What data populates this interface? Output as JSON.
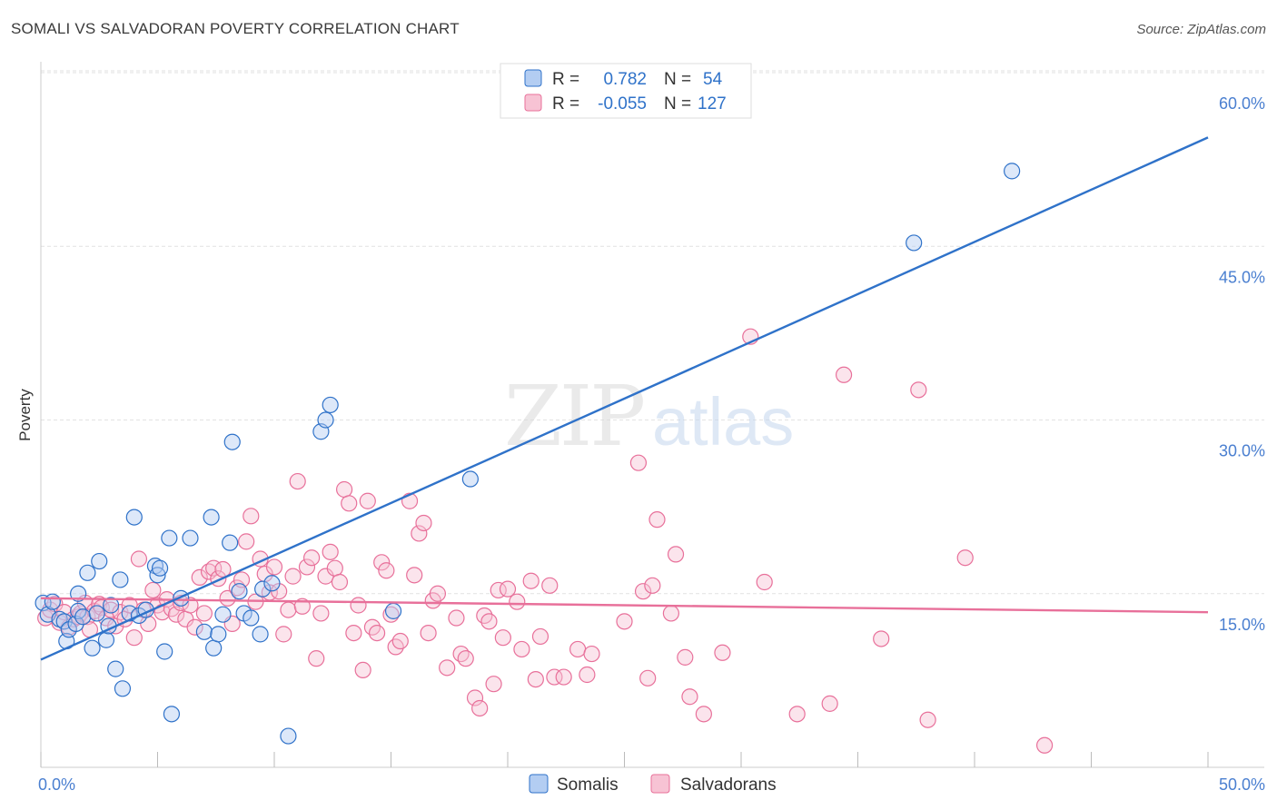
{
  "title": "SOMALI VS SALVADORAN POVERTY CORRELATION CHART",
  "source": "Source: ZipAtlas.com",
  "watermark": {
    "zip": "ZIP",
    "atlas": "atlas"
  },
  "colors": {
    "blue": "#2f72c9",
    "blue_fill": "#b3cdf2",
    "pink": "#e8709a",
    "pink_fill": "#f7c3d4",
    "axis_label": "#4a7fd0",
    "grid": "#e2e2e2"
  },
  "stats_legend": {
    "rows": [
      {
        "r_label": "R =",
        "r_value": "0.782",
        "n_label": "N =",
        "n_value": "54"
      },
      {
        "r_label": "R =",
        "r_value": "-0.055",
        "n_label": "N =",
        "n_value": "127"
      }
    ]
  },
  "chart_data": {
    "type": "scatter",
    "title": "SOMALI VS SALVADORAN POVERTY CORRELATION CHART",
    "xlabel": "",
    "ylabel": "Poverty",
    "xlim": [
      0,
      50
    ],
    "ylim": [
      0,
      60
    ],
    "x_tick_labels": [
      "0.0%",
      "50.0%"
    ],
    "y_ticks": [
      15,
      30,
      45,
      60
    ],
    "y_tick_labels": [
      "15.0%",
      "30.0%",
      "45.0%",
      "60.0%"
    ],
    "grid": true,
    "legend_position": "bottom-center",
    "series": [
      {
        "name": "Somalis",
        "color": "#2f72c9",
        "r": 0.782,
        "n": 54,
        "trend": {
          "x": [
            0,
            50
          ],
          "y": [
            9.3,
            54.4
          ]
        },
        "points": [
          [
            0.1,
            14.2
          ],
          [
            0.3,
            13.2
          ],
          [
            0.5,
            14.3
          ],
          [
            0.8,
            12.8
          ],
          [
            1.0,
            12.6
          ],
          [
            1.1,
            10.9
          ],
          [
            1.2,
            11.9
          ],
          [
            1.5,
            12.4
          ],
          [
            1.6,
            13.5
          ],
          [
            1.6,
            15.0
          ],
          [
            1.8,
            13.0
          ],
          [
            2.0,
            16.8
          ],
          [
            2.2,
            10.3
          ],
          [
            2.4,
            13.3
          ],
          [
            2.5,
            17.8
          ],
          [
            2.8,
            11.0
          ],
          [
            2.9,
            12.2
          ],
          [
            3.0,
            14.0
          ],
          [
            3.2,
            8.5
          ],
          [
            3.4,
            16.2
          ],
          [
            3.5,
            6.8
          ],
          [
            3.8,
            13.3
          ],
          [
            4.0,
            21.6
          ],
          [
            4.2,
            13.1
          ],
          [
            4.5,
            13.6
          ],
          [
            4.9,
            17.4
          ],
          [
            5.0,
            16.6
          ],
          [
            5.1,
            17.2
          ],
          [
            5.3,
            10.0
          ],
          [
            5.5,
            19.8
          ],
          [
            5.6,
            4.6
          ],
          [
            6.0,
            14.6
          ],
          [
            6.4,
            19.8
          ],
          [
            7.0,
            11.7
          ],
          [
            7.3,
            21.6
          ],
          [
            7.4,
            10.3
          ],
          [
            7.6,
            11.5
          ],
          [
            7.8,
            13.2
          ],
          [
            8.1,
            19.4
          ],
          [
            8.2,
            28.1
          ],
          [
            8.5,
            15.2
          ],
          [
            8.7,
            13.3
          ],
          [
            9.0,
            12.9
          ],
          [
            9.4,
            11.5
          ],
          [
            9.5,
            15.4
          ],
          [
            9.9,
            15.9
          ],
          [
            10.6,
            2.7
          ],
          [
            12.0,
            29.0
          ],
          [
            12.2,
            30.0
          ],
          [
            12.4,
            31.3
          ],
          [
            15.1,
            13.5
          ],
          [
            18.4,
            24.9
          ],
          [
            37.4,
            45.3
          ],
          [
            41.6,
            51.5
          ]
        ]
      },
      {
        "name": "Salvadorans",
        "color": "#e8709a",
        "r": -0.055,
        "n": 127,
        "trend": {
          "x": [
            0,
            50
          ],
          "y": [
            14.6,
            13.4
          ]
        },
        "points": [
          [
            0.2,
            12.9
          ],
          [
            0.4,
            13.6
          ],
          [
            0.6,
            14.1
          ],
          [
            0.8,
            12.5
          ],
          [
            1.0,
            13.4
          ],
          [
            1.2,
            12.1
          ],
          [
            1.4,
            12.8
          ],
          [
            1.6,
            13.0
          ],
          [
            1.7,
            13.3
          ],
          [
            1.9,
            14.2
          ],
          [
            2.0,
            13.0
          ],
          [
            2.1,
            11.9
          ],
          [
            2.3,
            13.5
          ],
          [
            2.5,
            14.1
          ],
          [
            2.6,
            13.8
          ],
          [
            2.8,
            12.9
          ],
          [
            3.0,
            13.6
          ],
          [
            3.2,
            12.2
          ],
          [
            3.4,
            13.4
          ],
          [
            3.6,
            12.8
          ],
          [
            3.8,
            14.0
          ],
          [
            4.0,
            11.2
          ],
          [
            4.2,
            18.0
          ],
          [
            4.4,
            13.6
          ],
          [
            4.6,
            12.4
          ],
          [
            4.8,
            15.3
          ],
          [
            5.0,
            14.0
          ],
          [
            5.2,
            13.4
          ],
          [
            5.4,
            14.5
          ],
          [
            5.6,
            13.7
          ],
          [
            5.8,
            13.2
          ],
          [
            6.0,
            14.2
          ],
          [
            6.2,
            12.8
          ],
          [
            6.4,
            14.0
          ],
          [
            6.6,
            12.1
          ],
          [
            6.8,
            16.4
          ],
          [
            7.0,
            13.3
          ],
          [
            7.2,
            16.9
          ],
          [
            7.4,
            17.2
          ],
          [
            7.6,
            16.3
          ],
          [
            7.8,
            17.1
          ],
          [
            8.0,
            14.6
          ],
          [
            8.2,
            12.4
          ],
          [
            8.4,
            15.5
          ],
          [
            8.6,
            16.2
          ],
          [
            8.8,
            19.5
          ],
          [
            9.0,
            21.7
          ],
          [
            9.2,
            14.3
          ],
          [
            9.4,
            18.0
          ],
          [
            9.6,
            16.7
          ],
          [
            9.8,
            15.1
          ],
          [
            10.0,
            17.3
          ],
          [
            10.2,
            15.2
          ],
          [
            10.4,
            11.5
          ],
          [
            10.6,
            13.6
          ],
          [
            10.8,
            16.5
          ],
          [
            11.0,
            24.7
          ],
          [
            11.2,
            13.9
          ],
          [
            11.4,
            17.3
          ],
          [
            11.6,
            18.1
          ],
          [
            11.8,
            9.4
          ],
          [
            12.0,
            13.3
          ],
          [
            12.2,
            16.5
          ],
          [
            12.4,
            18.6
          ],
          [
            12.6,
            17.2
          ],
          [
            12.8,
            16.0
          ],
          [
            13.0,
            24.0
          ],
          [
            13.2,
            22.8
          ],
          [
            13.4,
            11.6
          ],
          [
            13.6,
            14.0
          ],
          [
            13.8,
            8.4
          ],
          [
            14.0,
            23.0
          ],
          [
            14.2,
            12.1
          ],
          [
            14.4,
            11.6
          ],
          [
            14.6,
            17.7
          ],
          [
            14.8,
            17.0
          ],
          [
            15.0,
            13.2
          ],
          [
            15.2,
            10.4
          ],
          [
            15.4,
            10.9
          ],
          [
            15.8,
            23.0
          ],
          [
            16.0,
            16.6
          ],
          [
            16.2,
            20.2
          ],
          [
            16.4,
            21.1
          ],
          [
            16.6,
            11.6
          ],
          [
            16.8,
            14.4
          ],
          [
            17.0,
            15.0
          ],
          [
            17.4,
            8.6
          ],
          [
            17.8,
            12.9
          ],
          [
            18.0,
            9.8
          ],
          [
            18.2,
            9.4
          ],
          [
            18.6,
            6.0
          ],
          [
            18.8,
            5.1
          ],
          [
            19.0,
            13.1
          ],
          [
            19.2,
            12.6
          ],
          [
            19.4,
            7.2
          ],
          [
            19.6,
            15.3
          ],
          [
            19.8,
            11.2
          ],
          [
            20.0,
            15.4
          ],
          [
            20.4,
            14.3
          ],
          [
            20.6,
            10.2
          ],
          [
            21.0,
            16.1
          ],
          [
            21.2,
            7.6
          ],
          [
            21.4,
            11.3
          ],
          [
            21.8,
            15.7
          ],
          [
            22.0,
            7.8
          ],
          [
            22.4,
            7.8
          ],
          [
            23.0,
            10.2
          ],
          [
            23.4,
            8.0
          ],
          [
            23.6,
            9.8
          ],
          [
            25.0,
            12.6
          ],
          [
            25.6,
            26.3
          ],
          [
            25.8,
            15.2
          ],
          [
            26.0,
            7.7
          ],
          [
            26.2,
            15.7
          ],
          [
            26.4,
            21.4
          ],
          [
            27.0,
            13.3
          ],
          [
            27.2,
            18.4
          ],
          [
            27.6,
            9.5
          ],
          [
            27.8,
            6.1
          ],
          [
            28.4,
            4.6
          ],
          [
            29.2,
            9.9
          ],
          [
            30.4,
            37.2
          ],
          [
            31.0,
            16.0
          ],
          [
            32.4,
            4.6
          ],
          [
            33.8,
            5.5
          ],
          [
            34.4,
            33.9
          ],
          [
            36.0,
            11.1
          ],
          [
            37.6,
            32.6
          ],
          [
            38.0,
            4.1
          ],
          [
            39.6,
            18.1
          ],
          [
            43.0,
            1.9
          ]
        ]
      }
    ]
  }
}
